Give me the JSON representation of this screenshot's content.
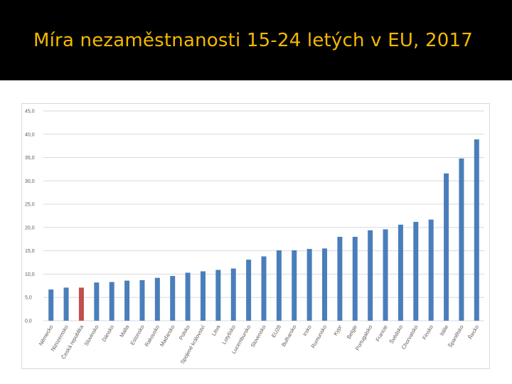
{
  "slide": {
    "title": "Míra nezaměstnanosti 15-24 letých v EU, 2017"
  },
  "colors": {
    "title_bar": "#000000",
    "title_text": "#f5b800",
    "bar_default": "#4a7ebb",
    "bar_highlight": "#c0504d",
    "gridline": "#d9d9d9"
  },
  "chart_data": {
    "type": "bar",
    "title": "",
    "xlabel": "",
    "ylabel": "",
    "ylim": [
      0,
      45
    ],
    "yticks": [
      "0,0",
      "5,0",
      "10,0",
      "15,0",
      "20,0",
      "25,0",
      "30,0",
      "35,0",
      "40,0",
      "45,0"
    ],
    "grid": true,
    "highlight_category": "Česká republika",
    "categories": [
      "Německo",
      "Nizozemsko",
      "Česká republika",
      "Slovinsko",
      "Dánsko",
      "Malta",
      "Estonsko",
      "Rakousko",
      "Maďarsko",
      "Polsko",
      "Spojené království",
      "Litva",
      "Lotyšsko",
      "Lucembursko",
      "Slovensko",
      "EU28",
      "Bulharsko",
      "Irsko",
      "Rumunsko",
      "Kypr",
      "Belgie",
      "Portugalsko",
      "Francie",
      "Švédsko",
      "Chorvatsko",
      "Finsko",
      "Itálie",
      "Španělsko",
      "Řecko"
    ],
    "values": [
      6.7,
      7.1,
      7.1,
      8.2,
      8.3,
      8.6,
      8.7,
      9.2,
      9.6,
      10.3,
      10.6,
      10.9,
      11.2,
      13.1,
      13.8,
      15.1,
      15.1,
      15.4,
      15.5,
      18.0,
      18.0,
      19.4,
      19.6,
      20.6,
      21.2,
      21.7,
      31.6,
      34.8,
      38.9
    ]
  }
}
